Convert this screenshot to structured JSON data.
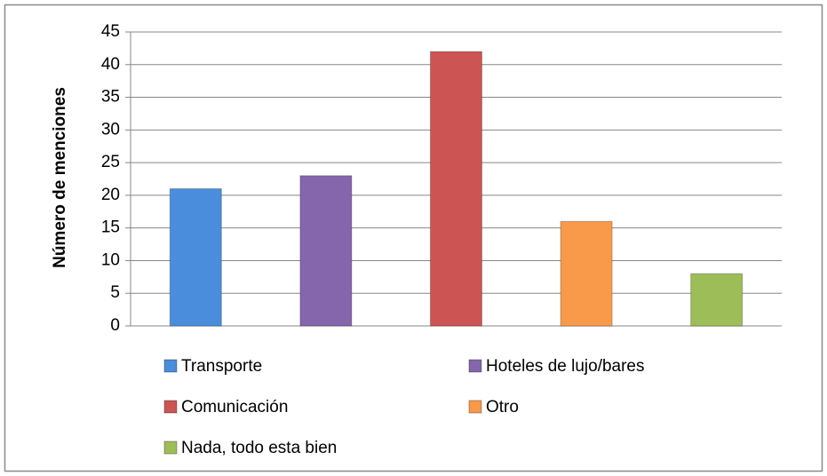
{
  "chart_data": {
    "type": "bar",
    "y_label": "Número de menciones",
    "series": [
      {
        "name": "Transporte",
        "color": "#4a8ddc",
        "values": [
          21
        ]
      },
      {
        "name": "Hoteles de lujo/bares",
        "color": "#8566ad",
        "values": [
          23
        ]
      },
      {
        "name": "Comunicación",
        "color": "#cc5452",
        "values": [
          42
        ]
      },
      {
        "name": "Otro",
        "color": "#f89a4a",
        "values": [
          16
        ]
      },
      {
        "name": "Nada, todo esta  bien",
        "color": "#9dbd58",
        "values": [
          8
        ]
      }
    ],
    "ylim": [
      0,
      45
    ],
    "yticks": [
      0,
      5,
      10,
      15,
      20,
      25,
      30,
      35,
      40,
      45
    ],
    "grid": true,
    "legend": "bottom"
  }
}
